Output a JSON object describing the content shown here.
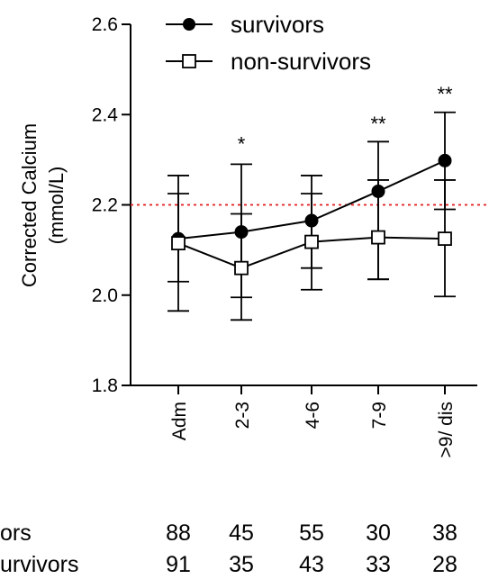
{
  "chart_data": {
    "type": "line",
    "categories": [
      "Adm",
      "2-3",
      "4-6",
      "7-9",
      ">9/ dis"
    ],
    "ylabel_lines": [
      "Corrected Calcium",
      "(mmol/L)"
    ],
    "xlabel": "",
    "ylim": [
      1.8,
      2.6
    ],
    "yticks": [
      1.8,
      2.0,
      2.2,
      2.4,
      2.6
    ],
    "ytick_labels": [
      "1.8",
      "2.0",
      "2.2",
      "2.4",
      "2.6"
    ],
    "reference_line": {
      "y": 2.2,
      "color": "#e31a1c",
      "style": "dotted"
    },
    "legend_position": "top",
    "grid": false,
    "series": [
      {
        "name": "survivors",
        "marker": "filled-circle",
        "color": "#000000",
        "values": [
          2.125,
          2.14,
          2.165,
          2.23,
          2.298
        ],
        "error_upper": [
          2.265,
          2.29,
          2.265,
          2.34,
          2.405
        ],
        "error_lower": [
          2.03,
          1.995,
          2.06,
          2.035,
          2.19
        ]
      },
      {
        "name": "non-survivors",
        "marker": "open-square",
        "color": "#000000",
        "values": [
          2.115,
          2.06,
          2.118,
          2.128,
          2.125
        ],
        "error_upper": [
          2.225,
          2.18,
          2.225,
          2.255,
          2.255
        ],
        "error_lower": [
          1.965,
          1.945,
          2.012,
          2.035,
          1.997
        ]
      }
    ],
    "annotations": [
      {
        "category": "2-3",
        "text": "*",
        "y": 2.34
      },
      {
        "category": "7-9",
        "text": "**",
        "y": 2.385
      },
      {
        "category": ">9/ dis",
        "text": "**",
        "y": 2.45
      }
    ],
    "counts_table": {
      "rows": [
        {
          "label": "survivors",
          "visible_label": "ors",
          "values": [
            "88",
            "45",
            "55",
            "30",
            "38"
          ]
        },
        {
          "label": "non-survivors",
          "visible_label": "urvivors",
          "values": [
            "91",
            "35",
            "43",
            "33",
            "28"
          ]
        }
      ]
    }
  }
}
